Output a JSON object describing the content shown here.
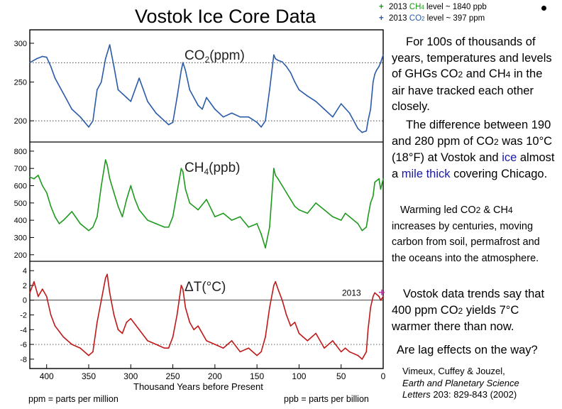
{
  "title": "Vostok Ice Core Data",
  "legend": {
    "ch4": {
      "marker": "+",
      "pre": "2013 ",
      "gas": "CH",
      "sub": "4",
      "post": " level ~ 1840 ppb",
      "color": "#1a9a1a"
    },
    "co2": {
      "marker": "+",
      "pre": "2013 ",
      "gas": "CO",
      "sub": "2",
      "post": " level ~ 397 ppm",
      "color": "#2a5aa8"
    }
  },
  "paragraphs": {
    "p1": {
      "a": "For 100s of thousands of years, temperatures and levels of GHGs CO",
      "b": "2",
      "c": " and CH",
      "d": "4",
      "e": " in the air have tracked each other closely."
    },
    "p2": {
      "a": "The difference between 190 and 280 ppm of CO",
      "b": "2",
      "c": " was 10°C (18°F) at Vostok and ",
      "ice": "ice",
      "mid": " almost a ",
      "mile": "mile thick",
      "end": " covering Chicago."
    },
    "p3": {
      "a": "Warming led CO",
      "b": "2",
      "c": " & CH",
      "d": "4",
      "e": " increases by centuries, moving carbon from soil, permafrost and the oceans into the atmosphere."
    },
    "p4": {
      "a": "Vostok data trends say that 400 ppm CO",
      "b": "2",
      "c": " yields 7°C warmer there than now."
    },
    "p5": "Are lag effects on the way?"
  },
  "citation": {
    "line1": "Vimeux, Cuffey & Jouzel,",
    "line2": "Earth and Planetary Science",
    "line3a": "Letters",
    "line3b": " 203: 829-843 (2002)"
  },
  "notes": {
    "ppm": "ppm = parts per million",
    "ppb": "ppb = parts per billion"
  },
  "chart_data": {
    "type": "line",
    "xlabel": "Thousand Years before Present",
    "x_ticks": [
      400,
      350,
      300,
      250,
      200,
      150,
      100,
      50,
      0
    ],
    "xlim": [
      420,
      0
    ],
    "marker_2013_label": "2013",
    "panels": [
      {
        "id": "co2",
        "title_main": "CO",
        "title_sub": "2",
        "title_unit": "(ppm)",
        "color": "#2a5aa8",
        "ylim": [
          180,
          310
        ],
        "y_ticks": [
          200,
          250,
          300
        ],
        "ref_lines": [
          200,
          275
        ],
        "x": [
          420,
          412,
          405,
          400,
          395,
          390,
          380,
          370,
          360,
          350,
          345,
          340,
          335,
          330,
          325,
          320,
          315,
          310,
          305,
          300,
          290,
          280,
          270,
          260,
          255,
          250,
          245,
          240,
          238,
          235,
          230,
          225,
          220,
          215,
          210,
          200,
          190,
          180,
          170,
          160,
          150,
          145,
          140,
          135,
          130,
          128,
          125,
          120,
          115,
          110,
          105,
          100,
          90,
          80,
          70,
          60,
          50,
          40,
          30,
          25,
          20,
          18,
          15,
          12,
          10,
          8,
          5,
          3,
          0
        ],
        "y": [
          275,
          280,
          283,
          282,
          270,
          255,
          235,
          215,
          205,
          192,
          200,
          240,
          250,
          280,
          298,
          270,
          240,
          235,
          230,
          225,
          255,
          225,
          210,
          200,
          195,
          198,
          230,
          265,
          275,
          265,
          240,
          230,
          220,
          215,
          230,
          215,
          205,
          210,
          205,
          205,
          198,
          192,
          200,
          240,
          285,
          280,
          278,
          276,
          270,
          262,
          250,
          240,
          232,
          225,
          215,
          205,
          222,
          210,
          190,
          185,
          187,
          200,
          215,
          250,
          260,
          265,
          270,
          275,
          285
        ]
      },
      {
        "id": "ch4",
        "title_main": "CH",
        "title_sub": "4",
        "title_unit": "(ppb)",
        "color": "#1e9a1e",
        "ylim": [
          195,
          820
        ],
        "y_ticks": [
          200,
          300,
          400,
          500,
          600,
          700,
          800
        ],
        "ref_lines": [],
        "x": [
          420,
          415,
          410,
          405,
          400,
          395,
          390,
          385,
          380,
          370,
          360,
          350,
          345,
          340,
          335,
          330,
          328,
          325,
          320,
          315,
          310,
          305,
          300,
          295,
          290,
          280,
          270,
          260,
          255,
          250,
          245,
          240,
          238,
          235,
          230,
          225,
          220,
          210,
          200,
          190,
          180,
          170,
          160,
          150,
          145,
          140,
          135,
          130,
          128,
          125,
          120,
          115,
          110,
          105,
          100,
          90,
          80,
          70,
          60,
          50,
          45,
          40,
          30,
          25,
          20,
          18,
          15,
          12,
          10,
          5,
          3,
          0
        ],
        "y": [
          650,
          640,
          660,
          600,
          560,
          480,
          420,
          380,
          400,
          450,
          380,
          340,
          360,
          420,
          600,
          750,
          720,
          640,
          560,
          480,
          420,
          520,
          600,
          520,
          460,
          400,
          380,
          360,
          360,
          420,
          560,
          700,
          680,
          580,
          500,
          480,
          460,
          520,
          420,
          440,
          400,
          420,
          360,
          380,
          320,
          240,
          360,
          700,
          660,
          640,
          600,
          560,
          520,
          480,
          460,
          440,
          500,
          460,
          420,
          400,
          440,
          420,
          380,
          340,
          360,
          420,
          500,
          540,
          620,
          640,
          580,
          640
        ]
      },
      {
        "id": "dt",
        "title_main": "ΔT",
        "title_sub": "",
        "title_unit": "(°C)",
        "color": "#c01818",
        "ylim": [
          -8.5,
          4.5
        ],
        "y_ticks": [
          -8,
          -6,
          -4,
          -2,
          0,
          2,
          4
        ],
        "ref_lines": [
          0,
          -6
        ],
        "x": [
          420,
          415,
          410,
          405,
          400,
          395,
          390,
          380,
          370,
          360,
          350,
          345,
          340,
          335,
          330,
          328,
          325,
          320,
          315,
          310,
          305,
          300,
          290,
          280,
          270,
          260,
          255,
          250,
          245,
          240,
          238,
          235,
          230,
          225,
          220,
          210,
          200,
          190,
          180,
          170,
          160,
          150,
          145,
          140,
          135,
          130,
          128,
          125,
          120,
          115,
          110,
          105,
          100,
          90,
          80,
          70,
          60,
          50,
          45,
          40,
          30,
          25,
          20,
          18,
          15,
          12,
          10,
          5,
          3,
          0
        ],
        "y": [
          1.0,
          2.5,
          0.5,
          1.5,
          0.5,
          -2.0,
          -3.5,
          -5.0,
          -6.0,
          -6.5,
          -7.5,
          -7.0,
          -3.0,
          0.0,
          3.0,
          3.5,
          1.0,
          -2.0,
          -4.0,
          -4.5,
          -3.0,
          -2.5,
          -4.0,
          -5.5,
          -6.0,
          -6.5,
          -6.5,
          -5.0,
          -2.0,
          2.0,
          1.5,
          -1.0,
          -3.0,
          -4.0,
          -3.5,
          -5.5,
          -6.0,
          -6.5,
          -5.5,
          -7.0,
          -6.5,
          -7.5,
          -7.0,
          -5.0,
          -1.0,
          2.0,
          2.5,
          1.5,
          0.0,
          -2.0,
          -3.5,
          -3.0,
          -4.5,
          -5.5,
          -4.5,
          -6.5,
          -5.5,
          -7.0,
          -6.5,
          -7.0,
          -7.5,
          -8.0,
          -7.0,
          -4.0,
          -1.0,
          0.5,
          1.0,
          0.5,
          0.0,
          0.5
        ]
      }
    ],
    "marker_2013": {
      "co2_ppm": 397,
      "ch4_ppb": 1840,
      "dt_value": 0
    }
  }
}
